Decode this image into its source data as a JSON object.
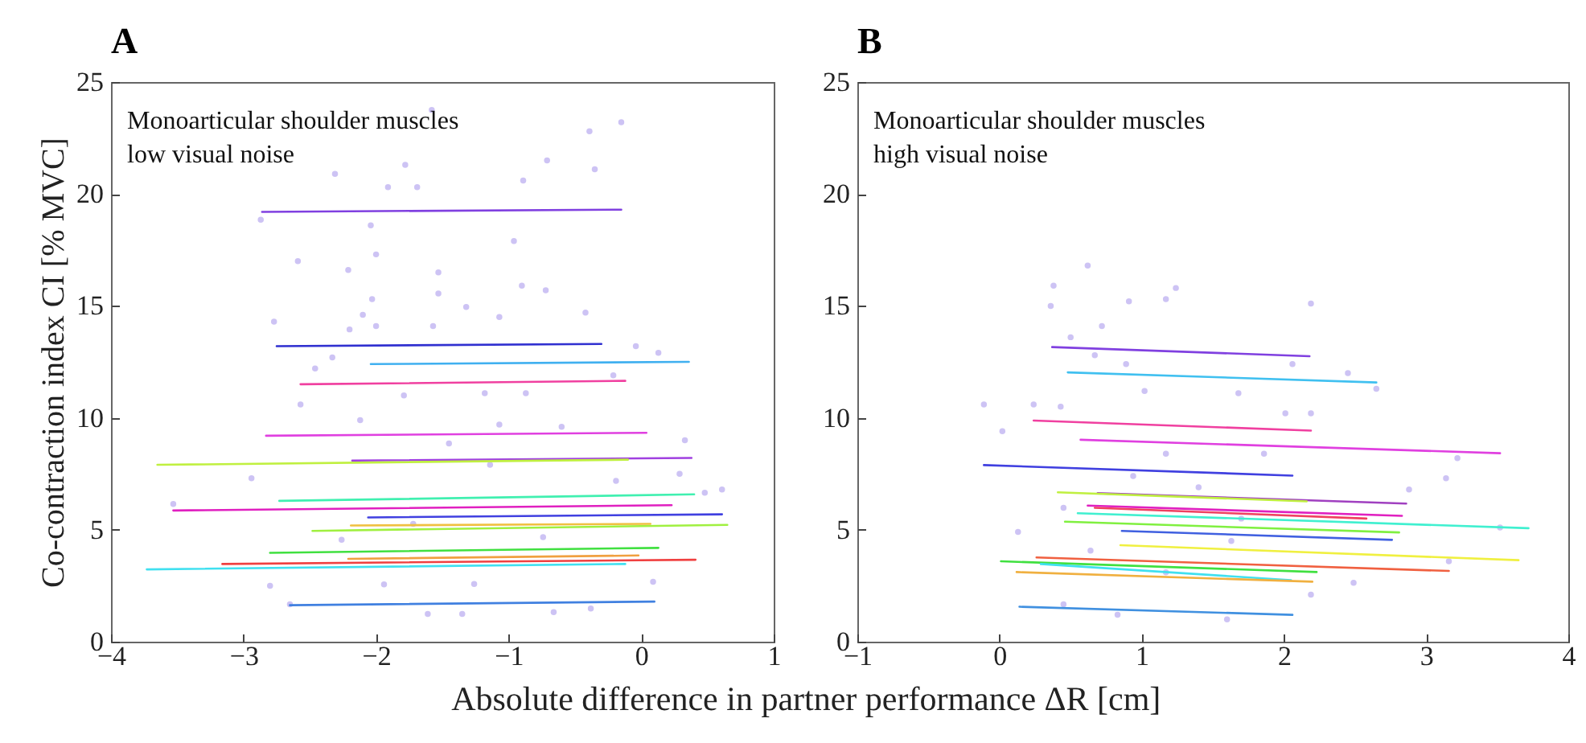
{
  "chart_data": [
    {
      "type": "line",
      "title": "A",
      "xlabel": "Absolute difference in partner performance ΔR [cm]",
      "ylabel": "Co-contraction index CI [% MVC]",
      "annotations": [
        "Monoarticular shoulder muscles",
        "low visual noise"
      ],
      "xlim": [
        -4,
        1
      ],
      "ylim": [
        0,
        25
      ],
      "xticks": [
        -4,
        -3,
        -2,
        -1,
        0,
        1
      ],
      "yticks": [
        0,
        5,
        10,
        15,
        20,
        25
      ],
      "series": [
        {
          "type": "scatter",
          "color": "#c4b8f2",
          "x": [
            -1.58,
            -0.15,
            -0.39,
            -1.78,
            -2.31,
            -0.71,
            -0.35,
            -1.91,
            -1.69,
            -0.89,
            -2.87,
            -2.04,
            -0.96,
            -2.59,
            -2.0,
            -2.21,
            -1.53,
            -0.9,
            -1.53,
            -0.72,
            -2.03,
            -1.32,
            -2.77,
            -2.1,
            -1.07,
            -0.42,
            -2.0,
            -1.57,
            -2.2,
            -0.04,
            0.13,
            -2.46,
            -2.33,
            -1.18,
            -0.21,
            -0.87,
            -2.57,
            -2.12,
            -1.07,
            -0.6,
            -2.94,
            -3.53,
            0.61,
            0.48,
            0.33,
            0.29,
            -2.65,
            -1.61,
            -0.66,
            -1.35,
            -0.38,
            -2.8,
            0.09,
            -1.94,
            -1.26,
            -2.26,
            -0.74,
            -1.72,
            -0.19,
            -1.14,
            -1.45,
            -1.79
          ],
          "values": [
            23.75,
            23.2,
            22.8,
            21.3,
            20.9,
            21.5,
            21.1,
            20.3,
            20.3,
            20.6,
            18.85,
            18.6,
            17.9,
            17.0,
            17.3,
            16.6,
            16.5,
            15.9,
            15.55,
            15.7,
            15.3,
            14.95,
            14.3,
            14.6,
            14.5,
            14.7,
            14.1,
            14.1,
            13.95,
            13.2,
            12.9,
            12.2,
            12.7,
            11.1,
            11.9,
            11.1,
            10.6,
            9.9,
            9.7,
            9.6,
            7.3,
            6.15,
            6.8,
            6.65,
            9.0,
            7.5,
            1.67,
            1.24,
            1.32,
            1.24,
            1.48,
            2.5,
            2.68,
            2.56,
            2.58,
            4.55,
            4.67,
            5.26,
            7.18,
            7.9,
            8.85,
            11.0
          ]
        },
        {
          "color": "#8040e0",
          "x": [
            -2.86,
            -0.15
          ],
          "values": [
            19.2,
            19.3
          ]
        },
        {
          "color": "#3030d0",
          "x": [
            -2.75,
            -0.3
          ],
          "values": [
            13.2,
            13.3
          ]
        },
        {
          "color": "#40b0f0",
          "x": [
            -2.04,
            0.36
          ],
          "values": [
            12.4,
            12.5
          ]
        },
        {
          "color": "#f040a0",
          "x": [
            -2.57,
            -0.12
          ],
          "values": [
            11.5,
            11.65
          ]
        },
        {
          "color": "#e040e0",
          "x": [
            -2.83,
            0.04
          ],
          "values": [
            9.2,
            9.33
          ]
        },
        {
          "color": "#a040e0",
          "x": [
            -2.18,
            0.38
          ],
          "values": [
            8.09,
            8.21
          ]
        },
        {
          "color": "#c0f040",
          "x": [
            -3.65,
            -0.1
          ],
          "values": [
            7.9,
            8.13
          ]
        },
        {
          "color": "#40f0b0",
          "x": [
            -2.73,
            0.4
          ],
          "values": [
            6.29,
            6.58
          ]
        },
        {
          "color": "#e020c0",
          "x": [
            -3.53,
            0.23
          ],
          "values": [
            5.86,
            6.1
          ]
        },
        {
          "color": "#4040e0",
          "x": [
            -2.06,
            0.61
          ],
          "values": [
            5.55,
            5.69
          ]
        },
        {
          "color": "#f0c040",
          "x": [
            -2.19,
            0.07
          ],
          "values": [
            5.19,
            5.26
          ]
        },
        {
          "color": "#a0f040",
          "x": [
            -2.48,
            0.65
          ],
          "values": [
            4.95,
            5.22
          ]
        },
        {
          "color": "#40e040",
          "x": [
            -2.8,
            0.13
          ],
          "values": [
            3.97,
            4.19
          ]
        },
        {
          "color": "#f0a040",
          "x": [
            -2.21,
            -0.02
          ],
          "values": [
            3.7,
            3.85
          ]
        },
        {
          "color": "#f04040",
          "x": [
            -3.16,
            0.41
          ],
          "values": [
            3.47,
            3.66
          ]
        },
        {
          "color": "#40e0f0",
          "x": [
            -3.73,
            -0.12
          ],
          "values": [
            3.23,
            3.47
          ]
        },
        {
          "color": "#4080e0",
          "x": [
            -2.65,
            0.1
          ],
          "values": [
            1.63,
            1.79
          ]
        }
      ]
    },
    {
      "type": "line",
      "title": "B",
      "annotations": [
        "Monoarticular shoulder muscles",
        "high visual noise"
      ],
      "xlim": [
        -1,
        4
      ],
      "ylim": [
        0,
        25
      ],
      "xticks": [
        -1,
        0,
        1,
        2,
        3,
        4
      ],
      "yticks": [
        0,
        5,
        10,
        15,
        20,
        25
      ],
      "series": [
        {
          "type": "scatter",
          "color": "#c4b8f2",
          "x": [
            0.62,
            0.38,
            0.36,
            0.91,
            1.24,
            1.17,
            2.19,
            0.72,
            0.5,
            0.67,
            0.89,
            2.06,
            2.45,
            2.65,
            -0.11,
            0.02,
            0.24,
            0.43,
            1.02,
            1.68,
            2.01,
            2.19,
            3.22,
            3.14,
            2.88,
            0.13,
            3.52,
            1.6,
            0.83,
            0.45,
            3.16,
            2.49,
            2.19,
            1.4,
            0.94,
            1.86,
            1.17,
            1.63,
            0.64,
            1.17,
            0.45,
            1.7
          ],
          "values": [
            16.8,
            15.9,
            15.0,
            15.2,
            15.8,
            15.3,
            15.1,
            14.1,
            13.6,
            12.8,
            12.4,
            12.4,
            12.0,
            11.3,
            10.6,
            9.4,
            10.6,
            10.5,
            11.2,
            11.1,
            10.2,
            10.2,
            8.2,
            7.3,
            6.8,
            4.9,
            5.1,
            1.0,
            1.2,
            1.67,
            3.59,
            2.63,
            2.1,
            6.9,
            7.4,
            8.4,
            8.4,
            4.5,
            4.07,
            3.1,
            5.98,
            5.5
          ]
        },
        {
          "color": "#8040e0",
          "x": [
            0.37,
            2.18
          ],
          "values": [
            13.16,
            12.75
          ]
        },
        {
          "color": "#40c0f0",
          "x": [
            0.48,
            2.65
          ],
          "values": [
            12.03,
            11.58
          ]
        },
        {
          "color": "#f040a0",
          "x": [
            0.24,
            2.19
          ],
          "values": [
            9.88,
            9.43
          ]
        },
        {
          "color": "#e040e0",
          "x": [
            0.57,
            3.52
          ],
          "values": [
            9.02,
            8.42
          ]
        },
        {
          "color": "#4040e0",
          "x": [
            -0.11,
            2.06
          ],
          "values": [
            7.89,
            7.42
          ]
        },
        {
          "color": "#a040c0",
          "x": [
            0.69,
            2.86
          ],
          "values": [
            6.63,
            6.17
          ]
        },
        {
          "color": "#c0f040",
          "x": [
            0.41,
            2.16
          ],
          "values": [
            6.67,
            6.27
          ]
        },
        {
          "color": "#e020c0",
          "x": [
            0.62,
            2.83
          ],
          "values": [
            6.08,
            5.62
          ]
        },
        {
          "color": "#f04060",
          "x": [
            0.67,
            2.58
          ],
          "values": [
            5.98,
            5.5
          ]
        },
        {
          "color": "#40f0d0",
          "x": [
            0.55,
            3.72
          ],
          "values": [
            5.74,
            5.07
          ]
        },
        {
          "color": "#80f040",
          "x": [
            0.46,
            2.81
          ],
          "values": [
            5.36,
            4.88
          ]
        },
        {
          "color": "#4060e0",
          "x": [
            0.86,
            2.76
          ],
          "values": [
            4.95,
            4.55
          ]
        },
        {
          "color": "#f0f040",
          "x": [
            0.85,
            3.65
          ],
          "values": [
            4.31,
            3.64
          ]
        },
        {
          "color": "#f06040",
          "x": [
            0.26,
            3.16
          ],
          "values": [
            3.76,
            3.16
          ]
        },
        {
          "color": "#40e040",
          "x": [
            0.01,
            2.23
          ],
          "values": [
            3.59,
            3.11
          ]
        },
        {
          "color": "#40e0f0",
          "x": [
            0.29,
            2.05
          ],
          "values": [
            3.47,
            2.75
          ]
        },
        {
          "color": "#f0b040",
          "x": [
            0.12,
            2.2
          ],
          "values": [
            3.11,
            2.68
          ]
        },
        {
          "color": "#4090e0",
          "x": [
            0.14,
            2.06
          ],
          "values": [
            1.56,
            1.2
          ]
        }
      ]
    }
  ]
}
